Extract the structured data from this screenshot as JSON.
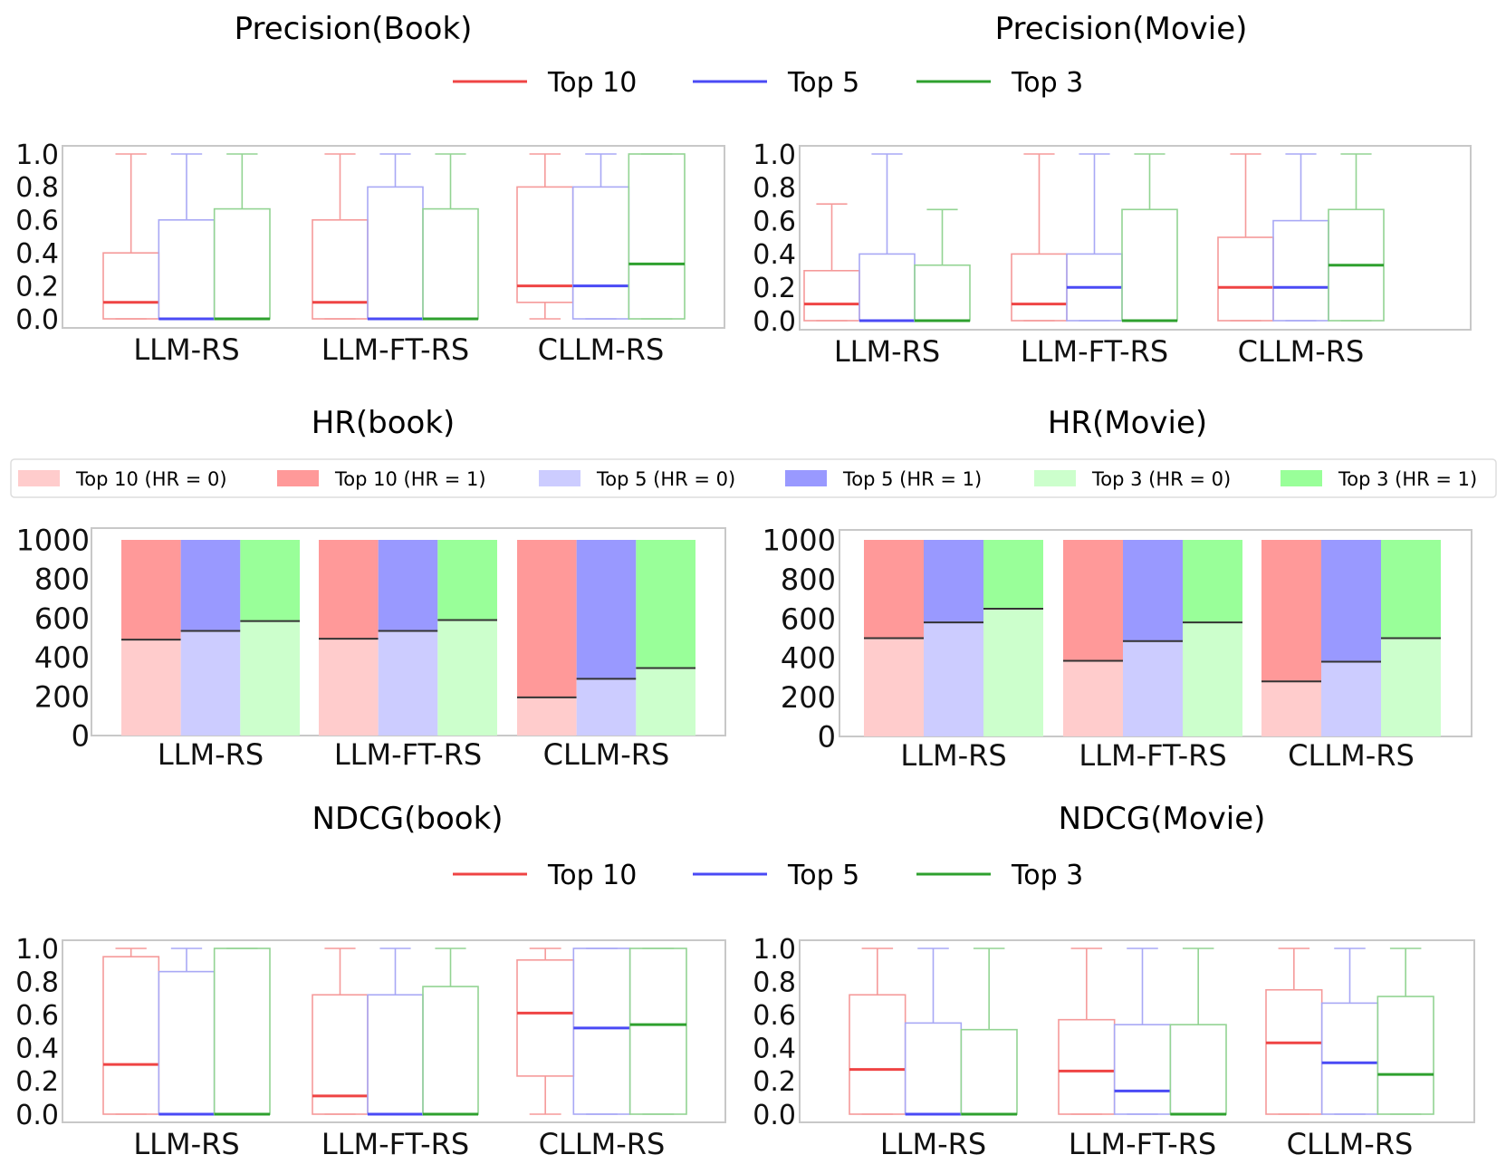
{
  "chart_data": [
    {
      "id": "precision_book",
      "type": "box",
      "title": "Precision(Book)",
      "categories": [
        "LLM-RS",
        "LLM-FT-RS",
        "CLLM-RS"
      ],
      "ylim": [
        0,
        1
      ],
      "yticks": [
        "0.0",
        "0.2",
        "0.4",
        "0.6",
        "0.8",
        "1.0"
      ],
      "series": [
        {
          "name": "Top 10",
          "boxes": [
            {
              "min": 0,
              "q1": 0,
              "median": 0.1,
              "q3": 0.4,
              "max": 1.0
            },
            {
              "min": 0,
              "q1": 0,
              "median": 0.1,
              "q3": 0.6,
              "max": 1.0
            },
            {
              "min": 0,
              "q1": 0.1,
              "median": 0.2,
              "q3": 0.8,
              "max": 1.0
            }
          ]
        },
        {
          "name": "Top 5",
          "boxes": [
            {
              "min": 0,
              "q1": 0,
              "median": 0.0,
              "q3": 0.6,
              "max": 1.0
            },
            {
              "min": 0,
              "q1": 0,
              "median": 0.0,
              "q3": 0.8,
              "max": 1.0
            },
            {
              "min": 0,
              "q1": 0,
              "median": 0.2,
              "q3": 0.8,
              "max": 1.0
            }
          ]
        },
        {
          "name": "Top 3",
          "boxes": [
            {
              "min": 0,
              "q1": 0,
              "median": 0.0,
              "q3": 0.667,
              "max": 1.0
            },
            {
              "min": 0,
              "q1": 0,
              "median": 0.0,
              "q3": 0.667,
              "max": 1.0
            },
            {
              "min": 0,
              "q1": 0,
              "median": 0.333,
              "q3": 1.0,
              "max": 1.0
            }
          ]
        }
      ]
    },
    {
      "id": "precision_movie",
      "type": "box",
      "title": "Precision(Movie)",
      "categories": [
        "LLM-RS",
        "LLM-FT-RS",
        "CLLM-RS"
      ],
      "ylim": [
        0,
        1
      ],
      "yticks": [
        "0.0",
        "0.2",
        "0.4",
        "0.6",
        "0.8",
        "1.0"
      ],
      "series": [
        {
          "name": "Top 10",
          "boxes": [
            {
              "min": 0,
              "q1": 0,
              "median": 0.1,
              "q3": 0.3,
              "max": 0.7
            },
            {
              "min": 0,
              "q1": 0,
              "median": 0.1,
              "q3": 0.4,
              "max": 1.0
            },
            {
              "min": 0,
              "q1": 0,
              "median": 0.2,
              "q3": 0.5,
              "max": 1.0
            }
          ]
        },
        {
          "name": "Top 5",
          "boxes": [
            {
              "min": 0,
              "q1": 0,
              "median": 0.0,
              "q3": 0.4,
              "max": 1.0
            },
            {
              "min": 0,
              "q1": 0,
              "median": 0.2,
              "q3": 0.4,
              "max": 1.0
            },
            {
              "min": 0,
              "q1": 0,
              "median": 0.2,
              "q3": 0.6,
              "max": 1.0
            }
          ]
        },
        {
          "name": "Top 3",
          "boxes": [
            {
              "min": 0,
              "q1": 0,
              "median": 0.0,
              "q3": 0.333,
              "max": 0.667
            },
            {
              "min": 0,
              "q1": 0,
              "median": 0.0,
              "q3": 0.667,
              "max": 1.0
            },
            {
              "min": 0,
              "q1": 0,
              "median": 0.333,
              "q3": 0.667,
              "max": 1.0
            }
          ]
        }
      ]
    },
    {
      "id": "hr_book",
      "type": "stacked_bar",
      "title": "HR(book)",
      "categories": [
        "LLM-RS",
        "LLM-FT-RS",
        "CLLM-RS"
      ],
      "ylim": [
        0,
        1000
      ],
      "yticks": [
        "0",
        "200",
        "400",
        "600",
        "800",
        "1000"
      ],
      "series": [
        {
          "name": "Top 10",
          "hr0": [
            490,
            495,
            195
          ],
          "hr1": [
            510,
            505,
            805
          ]
        },
        {
          "name": "Top 5",
          "hr0": [
            535,
            535,
            290
          ],
          "hr1": [
            465,
            465,
            710
          ]
        },
        {
          "name": "Top 3",
          "hr0": [
            585,
            590,
            345
          ],
          "hr1": [
            415,
            410,
            655
          ]
        }
      ]
    },
    {
      "id": "hr_movie",
      "type": "stacked_bar",
      "title": "HR(Movie)",
      "categories": [
        "LLM-RS",
        "LLM-FT-RS",
        "CLLM-RS"
      ],
      "ylim": [
        0,
        1000
      ],
      "yticks": [
        "0",
        "200",
        "400",
        "600",
        "800",
        "1000"
      ],
      "series": [
        {
          "name": "Top 10",
          "hr0": [
            500,
            385,
            280
          ],
          "hr1": [
            500,
            615,
            720
          ]
        },
        {
          "name": "Top 5",
          "hr0": [
            580,
            485,
            380
          ],
          "hr1": [
            420,
            515,
            620
          ]
        },
        {
          "name": "Top 3",
          "hr0": [
            650,
            580,
            500
          ],
          "hr1": [
            350,
            420,
            500
          ]
        }
      ]
    },
    {
      "id": "ndcg_book",
      "type": "box",
      "title": "NDCG(book)",
      "categories": [
        "LLM-RS",
        "LLM-FT-RS",
        "CLLM-RS"
      ],
      "ylim": [
        0,
        1
      ],
      "yticks": [
        "0.0",
        "0.2",
        "0.4",
        "0.6",
        "0.8",
        "1.0"
      ],
      "series": [
        {
          "name": "Top 10",
          "boxes": [
            {
              "min": 0,
              "q1": 0,
              "median": 0.3,
              "q3": 0.95,
              "max": 1.0
            },
            {
              "min": 0,
              "q1": 0,
              "median": 0.11,
              "q3": 0.72,
              "max": 1.0
            },
            {
              "min": 0,
              "q1": 0.23,
              "median": 0.61,
              "q3": 0.93,
              "max": 1.0
            }
          ]
        },
        {
          "name": "Top 5",
          "boxes": [
            {
              "min": 0,
              "q1": 0,
              "median": 0.0,
              "q3": 0.86,
              "max": 1.0
            },
            {
              "min": 0,
              "q1": 0,
              "median": 0.0,
              "q3": 0.72,
              "max": 1.0
            },
            {
              "min": 0,
              "q1": 0,
              "median": 0.52,
              "q3": 1.0,
              "max": 1.0
            }
          ]
        },
        {
          "name": "Top 3",
          "boxes": [
            {
              "min": 0,
              "q1": 0,
              "median": 0.0,
              "q3": 1.0,
              "max": 1.0
            },
            {
              "min": 0,
              "q1": 0,
              "median": 0.0,
              "q3": 0.77,
              "max": 1.0
            },
            {
              "min": 0,
              "q1": 0,
              "median": 0.54,
              "q3": 1.0,
              "max": 1.0
            }
          ]
        }
      ]
    },
    {
      "id": "ndcg_movie",
      "type": "box",
      "title": "NDCG(Movie)",
      "categories": [
        "LLM-RS",
        "LLM-FT-RS",
        "CLLM-RS"
      ],
      "ylim": [
        0,
        1
      ],
      "yticks": [
        "0.0",
        "0.2",
        "0.4",
        "0.6",
        "0.8",
        "1.0"
      ],
      "series": [
        {
          "name": "Top 10",
          "boxes": [
            {
              "min": 0,
              "q1": 0,
              "median": 0.27,
              "q3": 0.72,
              "max": 1.0
            },
            {
              "min": 0,
              "q1": 0,
              "median": 0.26,
              "q3": 0.57,
              "max": 1.0
            },
            {
              "min": 0,
              "q1": 0,
              "median": 0.43,
              "q3": 0.75,
              "max": 1.0
            }
          ]
        },
        {
          "name": "Top 5",
          "boxes": [
            {
              "min": 0,
              "q1": 0,
              "median": 0.0,
              "q3": 0.55,
              "max": 1.0
            },
            {
              "min": 0,
              "q1": 0,
              "median": 0.14,
              "q3": 0.54,
              "max": 1.0
            },
            {
              "min": 0,
              "q1": 0,
              "median": 0.31,
              "q3": 0.67,
              "max": 1.0
            }
          ]
        },
        {
          "name": "Top 3",
          "boxes": [
            {
              "min": 0,
              "q1": 0,
              "median": 0.0,
              "q3": 0.51,
              "max": 1.0
            },
            {
              "min": 0,
              "q1": 0,
              "median": 0.0,
              "q3": 0.54,
              "max": 1.0
            },
            {
              "min": 0,
              "q1": 0,
              "median": 0.24,
              "q3": 0.71,
              "max": 1.0
            }
          ]
        }
      ]
    }
  ],
  "legends": {
    "box_top": [
      "Top 10",
      "Top 5",
      "Top 3"
    ],
    "box_bottom": [
      "Top 10",
      "Top 5",
      "Top 3"
    ],
    "bar": [
      "Top 10 (HR = 0)",
      "Top 10 (HR = 1)",
      "Top 5 (HR = 0)",
      "Top 5 (HR = 1)",
      "Top 3 (HR = 0)",
      "Top 3 (HR = 1)"
    ]
  },
  "colors": {
    "top10_line": "#ef4444",
    "top5_line": "#4a4af5",
    "top3_line": "#2ea02e",
    "top10_box": "#f59a9a",
    "top5_box": "#a8a8f5",
    "top3_box": "#93d493",
    "top10_hr0": "#ffcccc",
    "top10_hr1": "#ff9999",
    "top5_hr0": "#ccccff",
    "top5_hr1": "#9999ff",
    "top3_hr0": "#ccffcc",
    "top3_hr1": "#99ff99",
    "frame": "#c8c8c8"
  }
}
